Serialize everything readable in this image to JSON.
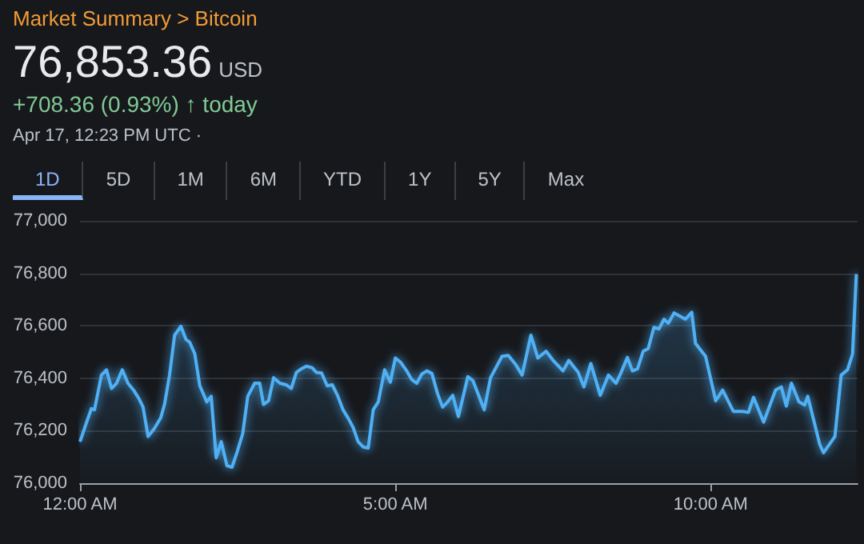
{
  "chart_data": {
    "type": "area",
    "title": "Market Summary > Bitcoin",
    "annotations": [
      "76,853.36",
      "USD",
      "+708.36 (0.93%) ↑ today",
      "Apr 17, 12:23 PM UTC ·",
      "1D",
      "5D",
      "1M",
      "6M",
      "YTD",
      "1Y",
      "5Y",
      "Max"
    ],
    "x": [
      0,
      0.1,
      0.18,
      0.23,
      0.34,
      0.42,
      0.5,
      0.58,
      0.67,
      0.76,
      0.86,
      0.94,
      1.0,
      1.08,
      1.18,
      1.28,
      1.34,
      1.42,
      1.5,
      1.6,
      1.68,
      1.74,
      1.82,
      1.9,
      2.01,
      2.08,
      2.16,
      2.24,
      2.33,
      2.41,
      2.49,
      2.58,
      2.66,
      2.77,
      2.85,
      2.91,
      2.99,
      3.07,
      3.17,
      3.27,
      3.35,
      3.43,
      3.51,
      3.59,
      3.68,
      3.75,
      3.83,
      3.92,
      4.0,
      4.09,
      4.17,
      4.25,
      4.33,
      4.41,
      4.49,
      4.57,
      4.65,
      4.73,
      4.83,
      4.92,
      5.0,
      5.08,
      5.18,
      5.26,
      5.34,
      5.42,
      5.5,
      5.58,
      5.67,
      5.75,
      5.83,
      5.91,
      6.0,
      6.15,
      6.23,
      6.41,
      6.51,
      6.69,
      6.79,
      6.91,
      7.01,
      7.15,
      7.26,
      7.39,
      7.51,
      7.66,
      7.75,
      7.9,
      7.99,
      8.1,
      8.25,
      8.38,
      8.5,
      8.58,
      8.68,
      8.76,
      8.84,
      8.93,
      9.01,
      9.1,
      9.18,
      9.26,
      9.33,
      9.42,
      9.6,
      9.7,
      9.76,
      9.92,
      10.08,
      10.19,
      10.36,
      10.5,
      10.6,
      10.68,
      10.84,
      11.03,
      11.12,
      11.2,
      11.28,
      11.4,
      11.49,
      11.54,
      11.73,
      11.79,
      11.97,
      12.07,
      12.17,
      12.25,
      12.31
    ],
    "series": [
      {
        "color": "#4fb0f5",
        "values": [
          76158,
          76229,
          76284,
          76280,
          76412,
          76432,
          76361,
          76381,
          76432,
          76381,
          76351,
          76320,
          76290,
          76178,
          76209,
          76249,
          76300,
          76412,
          76564,
          76598,
          76548,
          76537,
          76493,
          76371,
          76310,
          76331,
          76097,
          76158,
          76067,
          76061,
          76118,
          76189,
          76331,
          76381,
          76381,
          76300,
          76314,
          76402,
          76381,
          76375,
          76361,
          76422,
          76436,
          76446,
          76440,
          76422,
          76420,
          76371,
          76375,
          76331,
          76280,
          76249,
          76213,
          76158,
          76138,
          76134,
          76280,
          76310,
          76432,
          76385,
          76477,
          76462,
          76428,
          76395,
          76381,
          76416,
          76428,
          76418,
          76341,
          76290,
          76310,
          76335,
          76254,
          76406,
          76391,
          76280,
          76402,
          76483,
          76487,
          76452,
          76412,
          76564,
          76477,
          76503,
          76466,
          76428,
          76468,
          76422,
          76367,
          76456,
          76335,
          76412,
          76381,
          76422,
          76479,
          76428,
          76436,
          76503,
          76513,
          76594,
          76588,
          76625,
          76610,
          76649,
          76625,
          76651,
          76533,
          76483,
          76314,
          76355,
          76274,
          76274,
          76270,
          76327,
          76233,
          76355,
          76367,
          76294,
          76381,
          76310,
          76298,
          76331,
          76148,
          76116,
          76178,
          76412,
          76432,
          76493,
          76797
        ]
      }
    ],
    "xlim": [
      0,
      12.33
    ],
    "xticks": [
      {
        "value": 0,
        "label": "12:00 AM"
      },
      {
        "value": 5,
        "label": "5:00 AM"
      },
      {
        "value": 10,
        "label": "10:00 AM"
      }
    ],
    "ylim": [
      76000,
      77000
    ],
    "yticks": [
      {
        "value": 76000,
        "label": "76,000"
      },
      {
        "value": 76200,
        "label": "76,200"
      },
      {
        "value": 76400,
        "label": "76,400"
      },
      {
        "value": 76600,
        "label": "76,600"
      },
      {
        "value": 76800,
        "label": "76,800"
      },
      {
        "value": 77000,
        "label": "77,000"
      }
    ],
    "grid": "y",
    "marker": "none"
  }
}
